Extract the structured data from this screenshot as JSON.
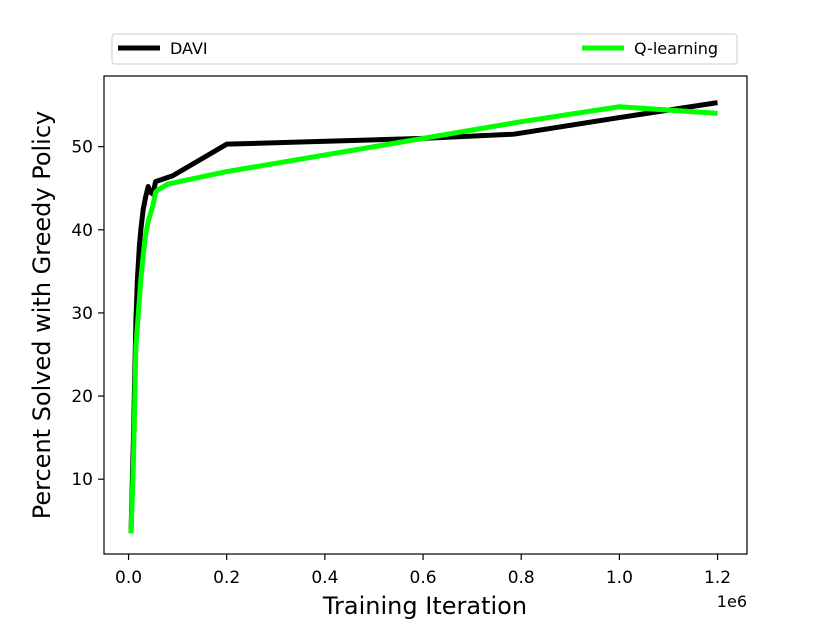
{
  "chart_data": {
    "type": "line",
    "xlabel": "Training Iteration",
    "ylabel": "Percent Solved with Greedy Policy",
    "x_offset_label": "1e6",
    "x_scale": 1000000,
    "xlim": [
      -0.05,
      1.26
    ],
    "ylim": [
      1.0,
      58.5
    ],
    "x_ticks": [
      0.0,
      0.2,
      0.4,
      0.6,
      0.8,
      1.0,
      1.2
    ],
    "x_tick_labels": [
      "0.0",
      "0.2",
      "0.4",
      "0.6",
      "0.8",
      "1.0",
      "1.2"
    ],
    "y_ticks": [
      10,
      20,
      30,
      40,
      50
    ],
    "y_tick_labels": [
      "10",
      "20",
      "30",
      "40",
      "50"
    ],
    "grid": false,
    "legend": {
      "placement": "top (above plot, spanning width)",
      "ncol": 2
    },
    "series": [
      {
        "name": "DAVI",
        "color": "#000000",
        "x": [
          0.005,
          0.01,
          0.015,
          0.018,
          0.022,
          0.025,
          0.03,
          0.035,
          0.04,
          0.045,
          0.05,
          0.055,
          0.09,
          0.2,
          0.6,
          0.785,
          1.0,
          1.2
        ],
        "y": [
          3.5,
          15.0,
          29.0,
          34.0,
          38.0,
          40.0,
          42.5,
          44.0,
          45.2,
          44.5,
          44.3,
          45.8,
          46.5,
          50.3,
          51.0,
          51.5,
          53.5,
          55.3
        ]
      },
      {
        "name": "Q-learning",
        "color": "#00ff00",
        "x": [
          0.005,
          0.01,
          0.015,
          0.02,
          0.025,
          0.03,
          0.035,
          0.04,
          0.045,
          0.05,
          0.055,
          0.06,
          0.08,
          0.2,
          0.6,
          0.8,
          1.0,
          1.2
        ],
        "y": [
          3.5,
          12.0,
          26.0,
          30.0,
          34.0,
          37.0,
          39.5,
          41.0,
          42.0,
          43.0,
          44.5,
          44.8,
          45.5,
          47.0,
          51.0,
          53.0,
          54.8,
          54.0
        ]
      }
    ]
  }
}
